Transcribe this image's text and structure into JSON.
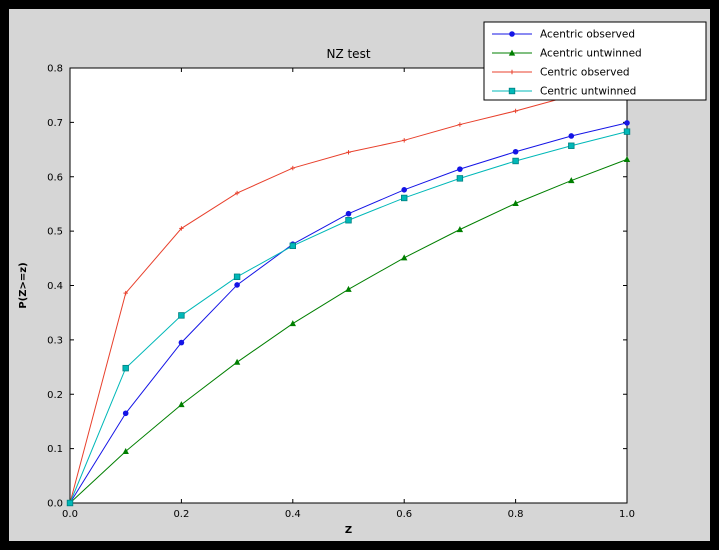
{
  "window": {
    "background": "#000000",
    "figure_background": "#d6d6d6",
    "plot_background": "#ffffff"
  },
  "chart_data": {
    "type": "line",
    "title": "NZ test",
    "xlabel": "Z",
    "ylabel": "P(Z>=z)",
    "xlim": [
      0.0,
      1.0
    ],
    "ylim": [
      0.0,
      0.8
    ],
    "xticks": [
      0.0,
      0.2,
      0.4,
      0.6,
      0.8,
      1.0
    ],
    "yticks": [
      0.0,
      0.1,
      0.2,
      0.3,
      0.4,
      0.5,
      0.6,
      0.7,
      0.8
    ],
    "grid": false,
    "legend_position": "upper right",
    "x": [
      0.0,
      0.1,
      0.2,
      0.3,
      0.4,
      0.5,
      0.6,
      0.7,
      0.8,
      0.9,
      1.0
    ],
    "series": [
      {
        "name": "Acentric observed",
        "color": "#1414e6",
        "marker": "circle",
        "values": [
          0.0,
          0.165,
          0.295,
          0.401,
          0.476,
          0.532,
          0.576,
          0.614,
          0.646,
          0.675,
          0.699
        ]
      },
      {
        "name": "Acentric untwinned",
        "color": "#007f00",
        "marker": "triangle",
        "values": [
          0.0,
          0.095,
          0.181,
          0.259,
          0.33,
          0.393,
          0.451,
          0.503,
          0.551,
          0.593,
          0.632
        ]
      },
      {
        "name": "Centric observed",
        "color": "#e8402c",
        "marker": "plus",
        "values": [
          0.0,
          0.386,
          0.505,
          0.57,
          0.616,
          0.645,
          0.667,
          0.696,
          0.721,
          0.749,
          0.776
        ]
      },
      {
        "name": "Centric untwinned",
        "color": "#00b8b8",
        "marker": "square",
        "values": [
          0.0,
          0.248,
          0.345,
          0.416,
          0.473,
          0.52,
          0.561,
          0.597,
          0.629,
          0.657,
          0.683
        ]
      }
    ]
  }
}
